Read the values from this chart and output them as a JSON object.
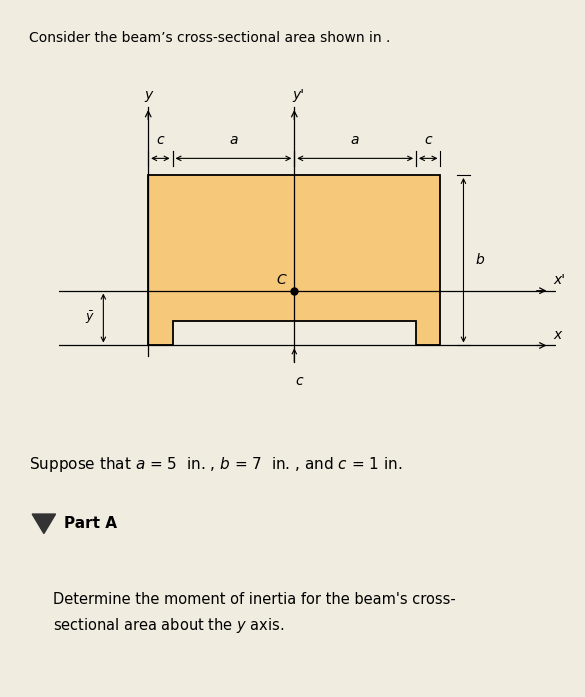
{
  "bg_outer": "#f0ece0",
  "bg_diagram": "#ffffff",
  "bg_bottom_section": "#f0f0f0",
  "bg_white": "#ffffff",
  "shape_fill": "#f5c87a",
  "shape_edge": "#000000",
  "title_text": "Consider the beam’s cross-sectional area shown in .",
  "suppose_text": "Suppose that a = 5  in. , b = 7  in. , and c = 1 in.",
  "part_a_text": "Part A",
  "part_a_body": "Determine the moment of inertia for the beam's cross-\nsectional area about the y axis.",
  "fig_width": 5.85,
  "fig_height": 6.97,
  "scale": 0.19,
  "a_in": 5,
  "b_in": 7,
  "c_in": 1
}
